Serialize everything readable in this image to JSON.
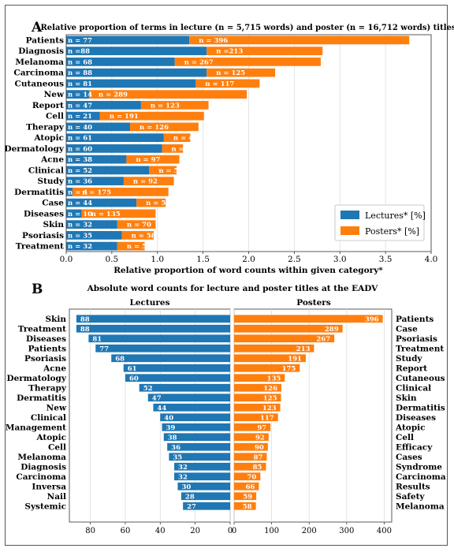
{
  "panel_a": {
    "letter": "A",
    "title": "Relative proportion of terms in lecture (n = 5,715 words) and poster (n = 16,712 words) titles",
    "xlabel": "Relative proportion of word counts within given category*",
    "legend": {
      "lectures": "Lectures* [%]",
      "posters": "Posters* [%]"
    }
  },
  "panel_b": {
    "letter": "B",
    "title": "Absolute word counts for lecture and poster titles at the EADV",
    "lectures_title": "Lectures",
    "posters_title": "Posters"
  },
  "colors": {
    "lectures": "#1f77b4",
    "posters": "#ff7f0e"
  },
  "chart_data": [
    {
      "type": "bar",
      "orientation": "horizontal",
      "stacked": true,
      "categories": [
        "Patients",
        "Diagnosis",
        "Melanoma",
        "Carcinoma",
        "Cutaneous",
        "New",
        "Report",
        "Cell",
        "Therapy",
        "Atopic",
        "Dermatology",
        "Acne",
        "Clinical",
        "Study",
        "Dermatitis",
        "Case",
        "Diseases",
        "Skin",
        "Psoriasis",
        "Treatment"
      ],
      "series": [
        {
          "name": "Lectures* [%]",
          "values": [
            1.35,
            1.54,
            1.19,
            1.54,
            1.42,
            0.25,
            0.82,
            0.37,
            0.7,
            1.07,
            1.05,
            0.66,
            0.91,
            0.63,
            0.07,
            0.77,
            0.17,
            0.56,
            0.61,
            0.56
          ]
        },
        {
          "name": "Posters* [%]",
          "values": [
            2.41,
            1.27,
            1.6,
            0.75,
            0.7,
            1.73,
            0.74,
            1.14,
            0.75,
            0.29,
            0.23,
            0.58,
            0.3,
            0.55,
            1.05,
            0.32,
            0.81,
            0.42,
            0.35,
            0.3
          ]
        }
      ],
      "labels_lectures": [
        "n = 77",
        "n =88",
        "n = 68",
        "n = 88",
        "n = 81",
        "n = 14",
        "n = 47",
        "n = 21",
        "n = 40",
        "n = 61",
        "n = 60",
        "n = 38",
        "n = 52",
        "n = 36",
        "n = 4",
        "n = 44",
        "n = 10",
        "n = 32",
        "n = 35",
        "n = 32"
      ],
      "labels_posters": [
        "n = 396",
        "n =213",
        "n = 267",
        "n = 125",
        "n = 117",
        "n = 289",
        "n = 123",
        "n = 191",
        "n = 126",
        "n = 49",
        "n = 38",
        "n = 97",
        "n = 50",
        "n = 92",
        "n = 175",
        "n = 53",
        "n = 135",
        "n = 70",
        "n = 58",
        "n = 50"
      ],
      "xticks": [
        "0.0",
        "0.5",
        "1.0",
        "1.5",
        "2.0",
        "2.5",
        "3.0",
        "3.5",
        "4.0"
      ],
      "xlim": [
        0,
        4.0
      ],
      "grid": true,
      "legend_position": "lower-right"
    },
    {
      "type": "bar",
      "orientation": "horizontal",
      "name": "Lectures",
      "categories": [
        "Skin",
        "Treatment",
        "Diseases",
        "Patients",
        "Psoriasis",
        "Acne",
        "Dermatology",
        "Therapy",
        "Dermatitis",
        "New",
        "Clinical",
        "Management",
        "Atopic",
        "Cell",
        "Melanoma",
        "Diagnosis",
        "Carcinoma",
        "Inversa",
        "Nail",
        "Systemic"
      ],
      "values": [
        88,
        88,
        81,
        77,
        68,
        61,
        60,
        52,
        47,
        44,
        40,
        39,
        38,
        36,
        35,
        32,
        32,
        30,
        28,
        27
      ],
      "xticks": [
        "80",
        "60",
        "40",
        "20",
        "0"
      ],
      "xlim": [
        92,
        0
      ],
      "grid": true
    },
    {
      "type": "bar",
      "orientation": "horizontal",
      "name": "Posters",
      "categories": [
        "Patients",
        "Case",
        "Psoriasis",
        "Treatment",
        "Study",
        "Report",
        "Cutaneous",
        "Clinical",
        "Skin",
        "Dermatitis",
        "Diseases",
        "Atopic",
        "Cell",
        "Efficacy",
        "Cases",
        "Syndrome",
        "Carcinoma",
        "Results",
        "Safety",
        "Melanoma"
      ],
      "values": [
        396,
        289,
        267,
        213,
        191,
        175,
        135,
        126,
        125,
        123,
        117,
        97,
        92,
        90,
        87,
        85,
        70,
        66,
        59,
        58
      ],
      "xticks": [
        "0",
        "100",
        "200",
        "300",
        "400"
      ],
      "xlim": [
        0,
        420
      ],
      "grid": true
    }
  ]
}
